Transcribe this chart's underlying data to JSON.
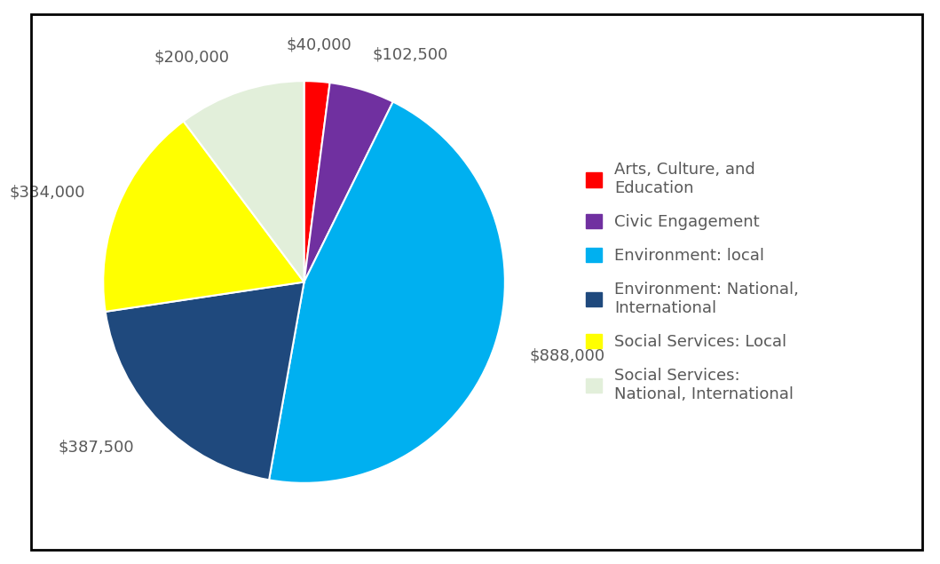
{
  "legend_labels": [
    "Arts, Culture, and\nEducation",
    "Civic Engagement",
    "Environment: local",
    "Environment: National,\nInternational",
    "Social Services: Local",
    "Social Services:\nNational, International"
  ],
  "values": [
    40000,
    102500,
    888000,
    387500,
    334000,
    200000
  ],
  "colors": [
    "#FF0000",
    "#7030A0",
    "#00B0F0",
    "#1F497D",
    "#FFFF00",
    "#E2EFDA"
  ],
  "data_labels": [
    "$40,000",
    "$102,500",
    "$888,000",
    "$387,500",
    "$334,000",
    "$200,000"
  ],
  "startangle": 90,
  "background_color": "#FFFFFF",
  "label_fontsize": 13,
  "legend_fontsize": 13,
  "legend_text_color": "#595959"
}
